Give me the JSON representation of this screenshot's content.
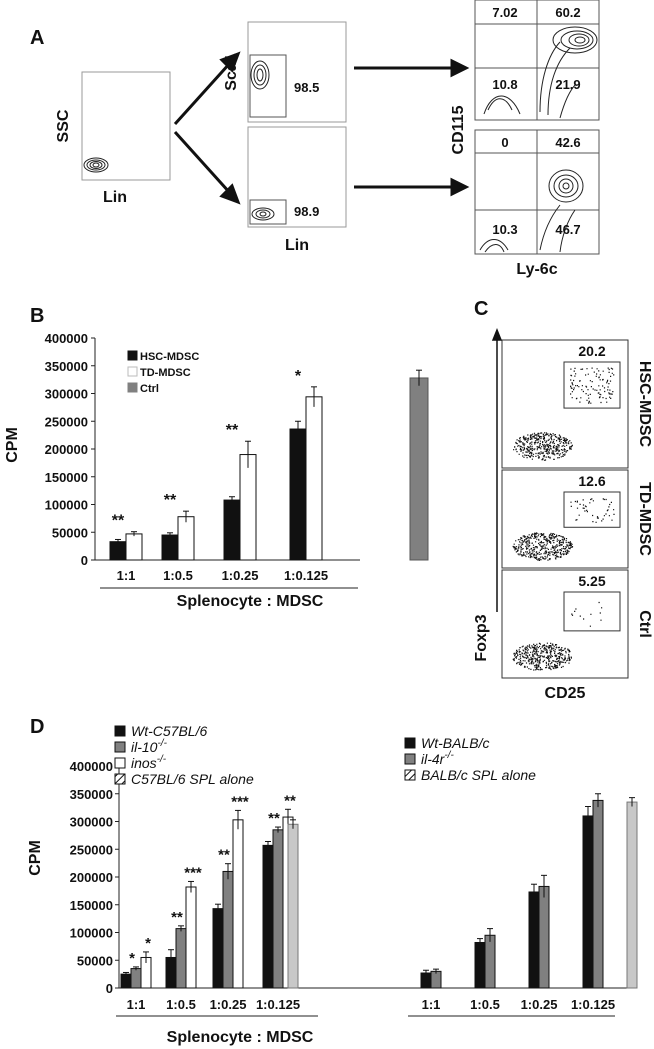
{
  "panel_labels": {
    "a": "A",
    "b": "B",
    "c": "C",
    "d": "D"
  },
  "panel_a": {
    "plot1": {
      "ylabel": "SSC",
      "xlabel": "Lin"
    },
    "plot2": {
      "ylabel": "Sca1",
      "xlabel": "Lin",
      "top_value": "98.5",
      "bottom_value": "98.9"
    },
    "plot3": {
      "ylabel": "CD115",
      "xlabel": "Ly-6c",
      "top_quadrants": {
        "ul": "7.02",
        "ur": "60.2",
        "ll": "10.8",
        "lr": "21.9"
      },
      "bottom_quadrants": {
        "ul": "0",
        "ur": "42.6",
        "ll": "10.3",
        "lr": "46.7"
      }
    }
  },
  "panel_c": {
    "ylabel": "Foxp3",
    "xlabel": "CD25",
    "rows": [
      {
        "label": "HSC-MDSC",
        "value": "20.2"
      },
      {
        "label": "TD-MDSC",
        "value": "12.6"
      },
      {
        "label": "Ctrl",
        "value": "5.25"
      }
    ]
  },
  "chart_data": [
    {
      "type": "bar",
      "panel": "B",
      "ylabel": "CPM",
      "xlabel": "Splenocyte : MDSC",
      "ylim": [
        0,
        400000
      ],
      "yticks": [
        "0",
        "50000",
        "100000",
        "150000",
        "200000",
        "250000",
        "300000",
        "350000",
        "400000"
      ],
      "categories": [
        "1:1",
        "1:0.5",
        "1:0.25",
        "1:0.125"
      ],
      "series": [
        {
          "name": "HSC-MDSC",
          "color": "#111111",
          "values": [
            33000,
            45000,
            108000,
            236000
          ],
          "errors": [
            4000,
            4000,
            6000,
            14000
          ]
        },
        {
          "name": "TD-MDSC",
          "color": "#ffffff",
          "values": [
            47000,
            78000,
            190000,
            294000
          ],
          "errors": [
            4000,
            10000,
            24000,
            18000
          ]
        }
      ],
      "control": {
        "name": "Ctrl",
        "color": "#808080",
        "value": 328000,
        "error": 14000
      },
      "significance": [
        "**",
        "**",
        "**",
        "*"
      ],
      "legend_position": "top-left"
    },
    {
      "type": "bar",
      "panel": "D",
      "ylabel": "CPM",
      "xlabel": "Splenocyte : MDSC",
      "ylim": [
        0,
        400000
      ],
      "yticks": [
        "0",
        "50000",
        "100000",
        "150000",
        "200000",
        "250000",
        "300000",
        "350000",
        "400000"
      ],
      "groups": [
        {
          "categories": [
            "1:1",
            "1:0.5",
            "1:0.25",
            "1:0.125"
          ],
          "series": [
            {
              "name": "Wt-C57BL/6",
              "color": "#111111",
              "values": [
                25000,
                55000,
                143000,
                257000
              ],
              "errors": [
                3000,
                14000,
                8000,
                7000
              ]
            },
            {
              "name": "il-10",
              "sup": "-/-",
              "color": "#808080",
              "values": [
                35000,
                107000,
                210000,
                285000
              ],
              "errors": [
                3000,
                5000,
                14000,
                5000
              ]
            },
            {
              "name": "inos",
              "sup": "-/-",
              "color": "#ffffff",
              "values": [
                55000,
                182000,
                303000,
                308000
              ],
              "errors": [
                10000,
                10000,
                17000,
                14000
              ]
            }
          ],
          "control": {
            "name": "C57BL/6 SPL alone",
            "color": "#c8c8c8",
            "value": 295000,
            "error": 8000
          },
          "significance": [
            [
              "*",
              "*"
            ],
            [
              "**",
              "***"
            ],
            [
              "**",
              "***"
            ],
            [
              "**",
              "**"
            ]
          ],
          "legend_position": "top-left"
        },
        {
          "categories": [
            "1:1",
            "1:0.5",
            "1:0.25",
            "1:0.125"
          ],
          "series": [
            {
              "name": "Wt-BALB/c",
              "color": "#111111",
              "values": [
                27000,
                82000,
                173000,
                310000
              ],
              "errors": [
                5000,
                7000,
                14000,
                17000
              ]
            },
            {
              "name": "il-4r",
              "sup": "-/-",
              "color": "#808080",
              "values": [
                30000,
                95000,
                183000,
                338000
              ],
              "errors": [
                4000,
                12000,
                20000,
                12000
              ]
            }
          ],
          "control": {
            "name": "BALB/c SPL alone",
            "color": "#c8c8c8",
            "value": 335000,
            "error": 8000
          },
          "legend_position": "top-center"
        }
      ]
    }
  ]
}
